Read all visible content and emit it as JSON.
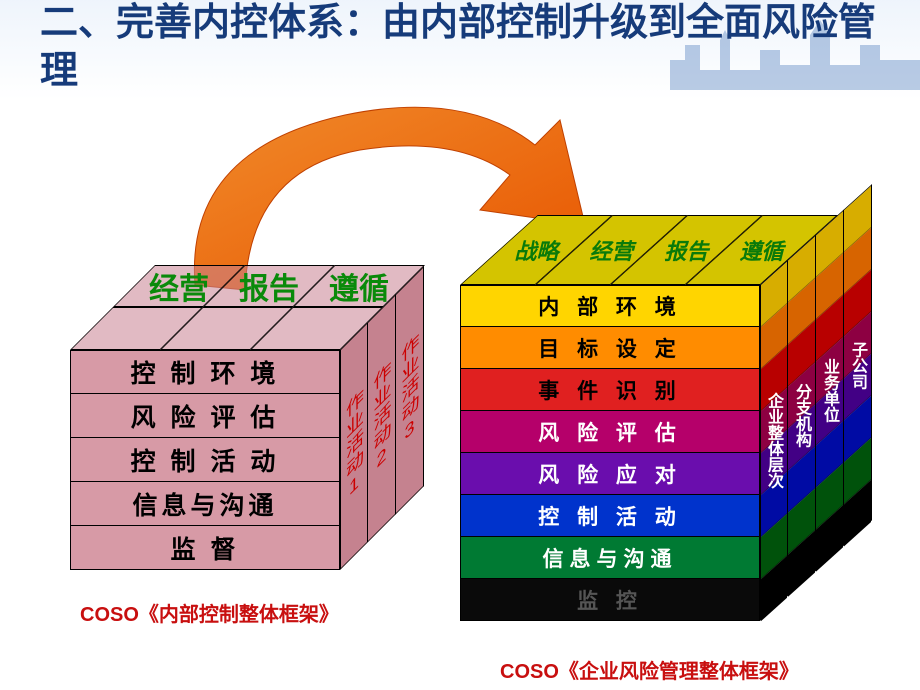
{
  "title": "二、完善内控体系：由内部控制升级到全面风险管理",
  "caption1": "COSO《内部控制整体框架》",
  "caption2": "COSO《企业风险管理整体框架》",
  "arrow_color": "#ec6a0a",
  "cube1": {
    "top_labels": [
      "经营",
      "报告",
      "遵循"
    ],
    "front_rows": [
      {
        "label": "控 制 环 境"
      },
      {
        "label": "风 险 评 估"
      },
      {
        "label": "控 制 活 动"
      },
      {
        "label": "信息与沟通"
      },
      {
        "label": "监 督"
      }
    ],
    "front_bg": "#d79aa6",
    "side_bg": "#c5828f",
    "side_cols": [
      "作业活动1",
      "作业活动2",
      "作业活动3"
    ]
  },
  "cube2": {
    "top_labels": [
      "战略",
      "经营",
      "报告",
      "遵循"
    ],
    "top_bg": "#d4c400",
    "front_rows": [
      {
        "label": "内 部 环 境",
        "bg": "#ffd500",
        "fg": "#000000"
      },
      {
        "label": "目 标 设 定",
        "bg": "#ff8c00",
        "fg": "#000000"
      },
      {
        "label": "事 件 识 别",
        "bg": "#e02020",
        "fg": "#000000"
      },
      {
        "label": "风 险 评 估",
        "bg": "#b5006a",
        "fg": "#ffffff"
      },
      {
        "label": "风 险 应 对",
        "bg": "#6a0dad",
        "fg": "#ffffff"
      },
      {
        "label": "控 制 活 动",
        "bg": "#0033cc",
        "fg": "#ffffff"
      },
      {
        "label": "信息与沟通",
        "bg": "#007a33",
        "fg": "#ffffff"
      },
      {
        "label": "监    控",
        "bg": "#0a0a0a",
        "fg": "#555555"
      }
    ],
    "side_cols": [
      "企业整体层次",
      "分支机构",
      "业务单位",
      "子公司"
    ]
  }
}
